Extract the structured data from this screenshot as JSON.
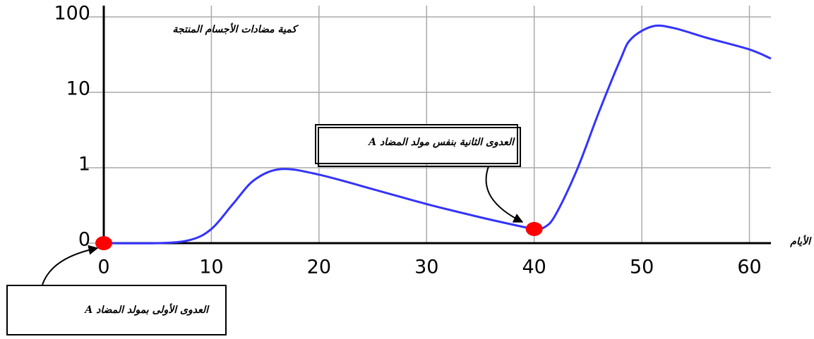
{
  "chart_data": {
    "type": "line",
    "y_label": "كمية مضادات الأجسام المنتجة",
    "x_label": "الأيام",
    "log_y": true,
    "grid": true,
    "xlim": [
      0,
      62
    ],
    "xticks": [
      0,
      10,
      20,
      30,
      40,
      50,
      60
    ],
    "ylim": [
      0.1,
      100
    ],
    "yticks": [
      {
        "value": 0.1,
        "label": "0"
      },
      1,
      10,
      100
    ],
    "series": [
      {
        "color": "#3333ff",
        "x": [
          0,
          5,
          8,
          10,
          12,
          14,
          16.5,
          20,
          25,
          30,
          35,
          39,
          40,
          41,
          42,
          44,
          46,
          48,
          49,
          51,
          53,
          56,
          60,
          62
        ],
        "values": [
          0.1,
          0.1,
          0.11,
          0.154,
          0.33,
          0.69,
          0.96,
          0.81,
          0.52,
          0.33,
          0.22,
          0.164,
          0.154,
          0.164,
          0.24,
          0.96,
          5.4,
          27,
          51,
          75,
          71,
          53,
          37,
          28
        ]
      }
    ],
    "markers": {
      "color": "#ff0000",
      "x": [
        0,
        40
      ],
      "values": [
        0.1,
        0.154
      ]
    },
    "annotations": [
      "العدوى الأولى بمولد المضاد A",
      "العدوى الثانية بنفس مولد المضاد A"
    ]
  }
}
